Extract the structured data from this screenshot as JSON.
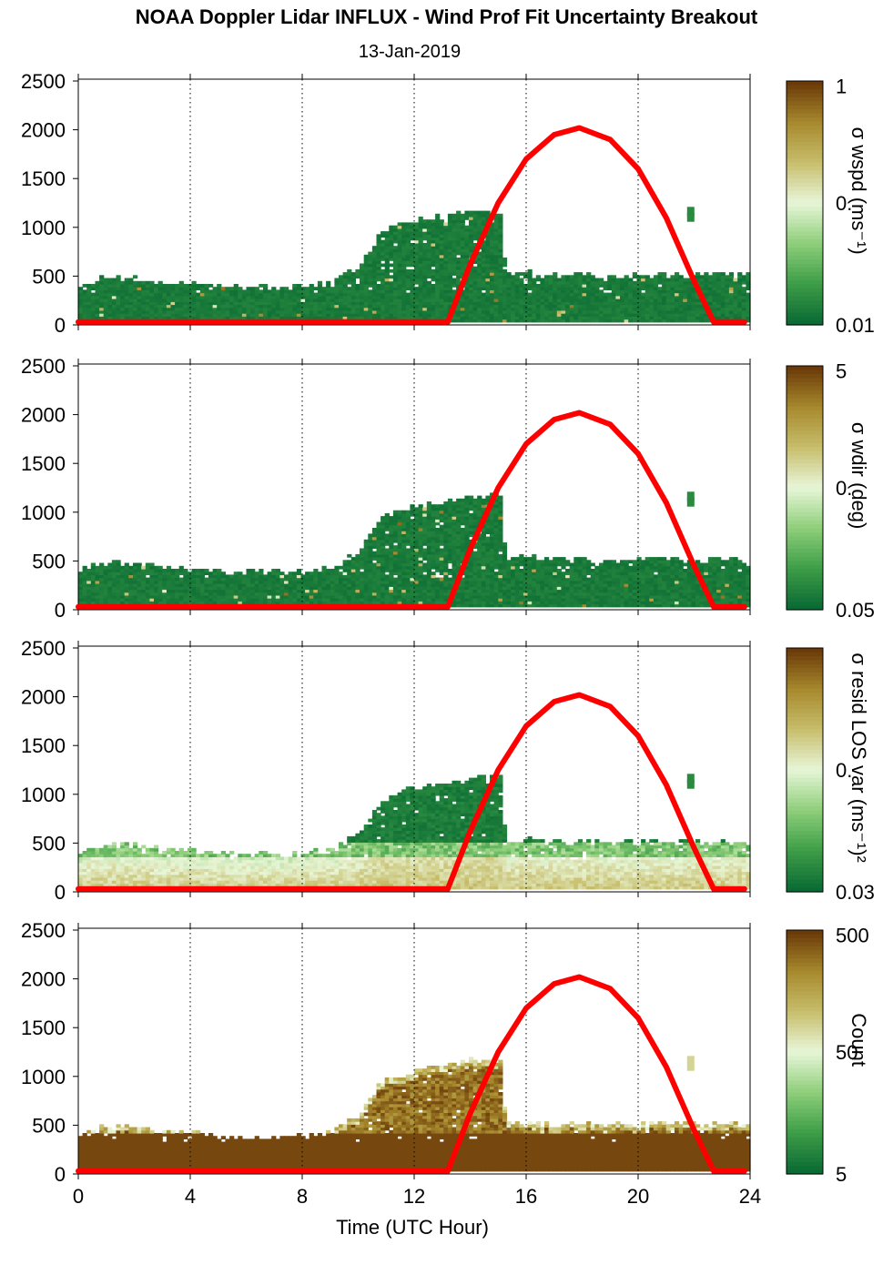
{
  "figure": {
    "title": "NOAA Doppler Lidar INFLUX - Wind Prof Fit Uncertainty Breakout",
    "subtitle": "13-Jan-2019",
    "xlabel": "Time (UTC Hour)"
  },
  "colors": {
    "sun_curve": "#ff0000",
    "cmap": [
      "#0a6b34",
      "#3f9e48",
      "#8fcf7b",
      "#e8f6d8",
      "#c8be6c",
      "#a78a2e",
      "#6b3a08"
    ]
  },
  "chart_data": [
    {
      "type": "heatmap",
      "name": "sigma-wspd",
      "ylabel": "",
      "colorbar_label": "σ wspd (ms⁻¹)",
      "colorbar_ticks": [
        "1",
        "0.",
        "0.01"
      ],
      "xlim": [
        0,
        24
      ],
      "ylim": [
        0,
        2500
      ],
      "xticks": [
        0,
        4,
        8,
        12,
        16,
        20,
        24
      ],
      "yticks": [
        0,
        500,
        1000,
        1500,
        2000,
        2500
      ],
      "show_xtick_labels": false,
      "grid": "vertical dotted at x ticks",
      "field": "sigma",
      "sun_elevation_curve": {
        "x": [
          13.2,
          14.0,
          15.0,
          16.0,
          17.0,
          17.9,
          19.0,
          20.0,
          21.0,
          22.0,
          22.7
        ],
        "y": [
          30,
          620,
          1250,
          1700,
          1950,
          2020,
          1900,
          1600,
          1100,
          450,
          30
        ]
      }
    },
    {
      "type": "heatmap",
      "name": "sigma-wdir",
      "ylabel": "",
      "colorbar_label": "σ wdir (deg)",
      "colorbar_ticks": [
        "5",
        "0.",
        "0.05"
      ],
      "xlim": [
        0,
        24
      ],
      "ylim": [
        0,
        2500
      ],
      "xticks": [
        0,
        4,
        8,
        12,
        16,
        20,
        24
      ],
      "yticks": [
        0,
        500,
        1000,
        1500,
        2000,
        2500
      ],
      "show_xtick_labels": false,
      "grid": "vertical dotted at x ticks",
      "field": "sigma",
      "sun_elevation_curve": {
        "x": [
          13.2,
          14.0,
          15.0,
          16.0,
          17.0,
          17.9,
          19.0,
          20.0,
          21.0,
          22.0,
          22.7
        ],
        "y": [
          30,
          620,
          1250,
          1700,
          1950,
          2020,
          1900,
          1600,
          1100,
          450,
          30
        ]
      }
    },
    {
      "type": "heatmap",
      "name": "sigma-resid-los-var",
      "ylabel": "",
      "colorbar_label": "σ resid LOS var (ms⁻¹)²",
      "colorbar_ticks": [
        "0.",
        "0.03"
      ],
      "xlim": [
        0,
        24
      ],
      "ylim": [
        0,
        2500
      ],
      "xticks": [
        0,
        4,
        8,
        12,
        16,
        20,
        24
      ],
      "yticks": [
        0,
        500,
        1000,
        1500,
        2000,
        2500
      ],
      "show_xtick_labels": false,
      "grid": "vertical dotted at x ticks",
      "field": "resid",
      "sun_elevation_curve": {
        "x": [
          13.2,
          14.0,
          15.0,
          16.0,
          17.0,
          17.9,
          19.0,
          20.0,
          21.0,
          22.0,
          22.7
        ],
        "y": [
          30,
          620,
          1250,
          1700,
          1950,
          2020,
          1900,
          1600,
          1100,
          450,
          30
        ]
      }
    },
    {
      "type": "heatmap",
      "name": "count",
      "ylabel": "",
      "colorbar_label": "Count",
      "colorbar_ticks": [
        "500",
        "50",
        "5"
      ],
      "xlim": [
        0,
        24
      ],
      "ylim": [
        0,
        2500
      ],
      "xticks": [
        0,
        4,
        8,
        12,
        16,
        20,
        24
      ],
      "yticks": [
        0,
        500,
        1000,
        1500,
        2000,
        2500
      ],
      "show_xtick_labels": true,
      "grid": "vertical dotted at x ticks",
      "field": "count",
      "sun_elevation_curve": {
        "x": [
          13.2,
          14.0,
          15.0,
          16.0,
          17.0,
          17.9,
          19.0,
          20.0,
          21.0,
          22.0,
          22.7
        ],
        "y": [
          30,
          620,
          1250,
          1700,
          1950,
          2020,
          1900,
          1600,
          1100,
          450,
          30
        ]
      }
    }
  ],
  "data_top_profile": {
    "x": [
      0,
      1,
      2,
      3,
      4,
      5,
      6,
      7,
      8,
      9,
      10,
      10.8,
      12,
      13,
      14,
      15,
      15.2,
      16,
      17,
      18,
      19,
      20,
      21,
      22,
      23,
      23.8
    ],
    "y": [
      400,
      480,
      470,
      420,
      410,
      380,
      370,
      370,
      380,
      420,
      600,
      950,
      1050,
      1100,
      1150,
      1150,
      500,
      520,
      490,
      510,
      480,
      500,
      510,
      490,
      510,
      500
    ]
  }
}
